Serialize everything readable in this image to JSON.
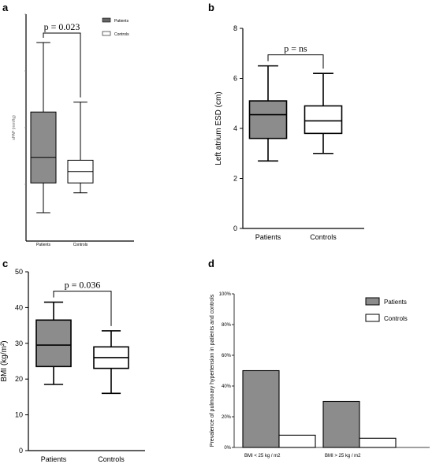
{
  "panels": {
    "a": "a",
    "b": "b",
    "c": "c",
    "d": "d"
  },
  "colors": {
    "patients_fill": "#8c8c8c",
    "controls_fill": "#ffffff",
    "axis": "#000000"
  },
  "chart_data": [
    {
      "id": "a",
      "type": "box",
      "ylabel": "sPAP (mmHg)",
      "ylim": [
        0,
        80
      ],
      "categories": [
        "Patients",
        "Controls"
      ],
      "boxes": [
        {
          "name": "Patients",
          "min": 10,
          "q1": 20.5,
          "median": 29.5,
          "q3": 45.5,
          "max": 70
        },
        {
          "name": "Controls",
          "min": 17,
          "q1": 20.5,
          "median": 24.5,
          "q3": 28.5,
          "max": 49
        }
      ],
      "legend": [
        "Patients",
        "Controls"
      ],
      "annotation": "p = 0.023"
    },
    {
      "id": "b",
      "type": "box",
      "ylabel": "Left atrium ESD (cm)",
      "ylim": [
        0,
        8
      ],
      "yticks": [
        "0",
        "2",
        "4",
        "6",
        "8"
      ],
      "categories": [
        "Patients",
        "Controls"
      ],
      "boxes": [
        {
          "name": "Patients",
          "min": 2.7,
          "q1": 3.6,
          "median": 4.55,
          "q3": 5.1,
          "max": 6.5
        },
        {
          "name": "Controls",
          "min": 3.0,
          "q1": 3.8,
          "median": 4.3,
          "q3": 4.9,
          "max": 6.2
        }
      ],
      "annotation": "p = ns"
    },
    {
      "id": "c",
      "type": "box",
      "ylabel": "BMI (kg/m²)",
      "ylim": [
        0,
        50
      ],
      "yticks": [
        "0",
        "10",
        "20",
        "30",
        "40",
        "50"
      ],
      "categories": [
        "Patients",
        "Controls"
      ],
      "boxes": [
        {
          "name": "Patients",
          "min": 18.5,
          "q1": 23.5,
          "median": 29.5,
          "q3": 36.5,
          "max": 41.5
        },
        {
          "name": "Controls",
          "min": 16,
          "q1": 23,
          "median": 26,
          "q3": 29,
          "max": 33.5
        }
      ],
      "annotation": "p = 0.036"
    },
    {
      "id": "d",
      "type": "bar",
      "ylabel": "Prevalence of pulmonary hypertension in patients and controls",
      "ylim": [
        0,
        100
      ],
      "yticks": [
        "0%",
        "20%",
        "40%",
        "60%",
        "80%",
        "100%"
      ],
      "categories": [
        "BMI < 25 kg / m2",
        "BMI > 25 kg / m2"
      ],
      "series": [
        {
          "name": "Patients",
          "values": [
            50,
            30
          ]
        },
        {
          "name": "Controls",
          "values": [
            8,
            6
          ]
        }
      ],
      "legend": [
        "Patients",
        "Controls"
      ],
      "legend_position": "top-right"
    }
  ]
}
